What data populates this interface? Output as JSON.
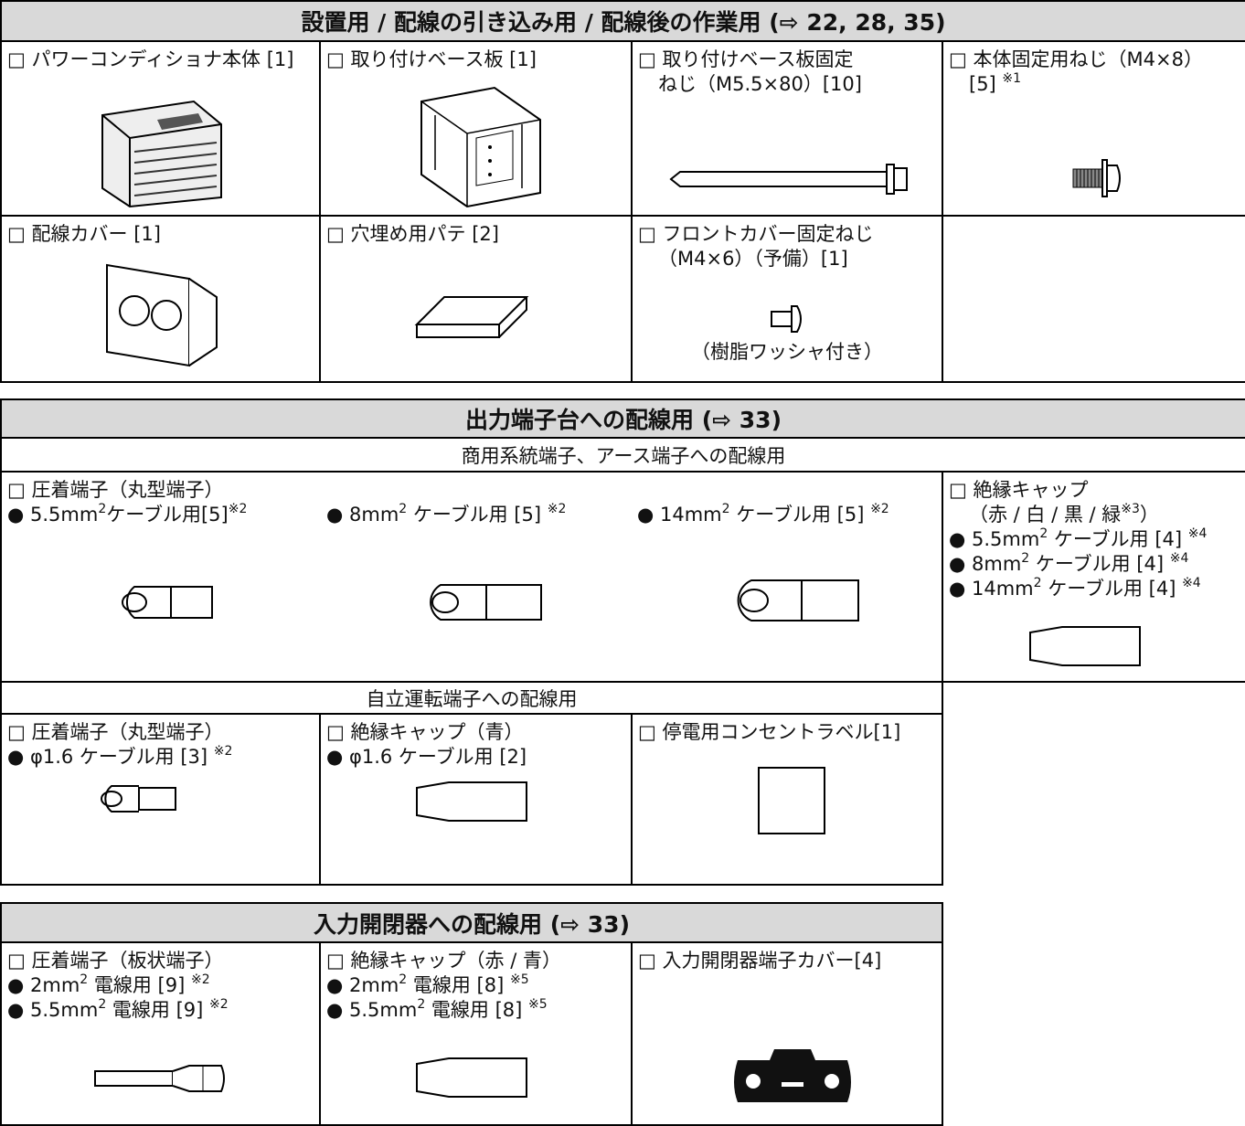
{
  "part1": {
    "header": "設置用 / 配線の引き込み用 / 配線後の作業用 (⇨ 22, 28, 35)",
    "items": [
      {
        "lines": [
          [
            "□ パワーコンディショナ本体 [1]"
          ]
        ]
      },
      {
        "lines": [
          [
            "□ 取り付けベース板 [1]"
          ]
        ]
      },
      {
        "lines": [
          [
            "□ 取り付けベース板固定"
          ],
          [
            "ねじ（M5.5×80）[10]"
          ]
        ]
      },
      {
        "lines": [
          [
            "□ 本体固定用ねじ（M4×8）"
          ],
          [
            "[5] ",
            {
              "sup": "※1"
            }
          ]
        ]
      },
      {
        "lines": [
          [
            "□ 配線カバー [1]"
          ]
        ]
      },
      {
        "lines": [
          [
            "□ 穴埋め用パテ [2]"
          ]
        ]
      },
      {
        "lines": [
          [
            "□ フロントカバー固定ねじ"
          ],
          [
            "（M4×6）（予備）[1]"
          ]
        ],
        "caption": "（樹脂ワッシャ付き）"
      }
    ]
  },
  "part2": {
    "header": "出力端子台への配線用 (⇨ 33)",
    "groups": [
      {
        "title": "商用系統端子、アース端子への配線用",
        "items": [
          {
            "lines": [
              [
                "□ 圧着端子（丸型端子）"
              ]
            ],
            "bullets": [
              [
                "● 5.5mm",
                {
                  "sup": "2"
                },
                "ケーブル用[5]",
                {
                  "sup": "※2"
                }
              ],
              [
                "● 8mm",
                {
                  "sup": "2"
                },
                " ケーブル用 [5] ",
                {
                  "sup": "※2"
                }
              ],
              [
                "● 14mm",
                {
                  "sup": "2"
                },
                " ケーブル用 [5] ",
                {
                  "sup": "※2"
                }
              ]
            ]
          },
          {
            "lines": [
              [
                "□ 絶縁キャップ"
              ],
              [
                "（赤 / 白 / 黒 / 緑",
                {
                  "sup": "※3"
                },
                "）"
              ],
              [
                "● 5.5mm",
                {
                  "sup": "2"
                },
                " ケーブル用 [4] ",
                {
                  "sup": "※4"
                }
              ],
              [
                "● 8mm",
                {
                  "sup": "2"
                },
                " ケーブル用 [4] ",
                {
                  "sup": "※4"
                }
              ],
              [
                "● 14mm",
                {
                  "sup": "2"
                },
                " ケーブル用 [4] ",
                {
                  "sup": "※4"
                }
              ]
            ]
          }
        ]
      },
      {
        "title": "自立運転端子への配線用",
        "items": [
          {
            "lines": [
              [
                "□ 圧着端子（丸型端子）"
              ],
              [
                "● φ1.6 ケーブル用 [3] ",
                {
                  "sup": "※2"
                }
              ]
            ]
          },
          {
            "lines": [
              [
                "□ 絶縁キャップ（青）"
              ],
              [
                "● φ1.6 ケーブル用 [2]"
              ]
            ]
          },
          {
            "lines": [
              [
                "□ 停電用コンセントラベル[1]"
              ]
            ]
          }
        ]
      }
    ]
  },
  "part3": {
    "header": "入力開閉器への配線用 (⇨ 33)",
    "items": [
      {
        "lines": [
          [
            "□ 圧着端子（板状端子）"
          ],
          [
            "● 2mm",
            {
              "sup": "2"
            },
            " 電線用 [9] ",
            {
              "sup": "※2"
            }
          ],
          [
            "● 5.5mm",
            {
              "sup": "2"
            },
            " 電線用 [9] ",
            {
              "sup": "※2"
            }
          ]
        ]
      },
      {
        "lines": [
          [
            "□ 絶縁キャップ（赤 / 青）"
          ],
          [
            "● 2mm",
            {
              "sup": "2"
            },
            " 電線用 [8] ",
            {
              "sup": "※5"
            }
          ],
          [
            "● 5.5mm",
            {
              "sup": "2"
            },
            " 電線用 [8] ",
            {
              "sup": "※5"
            }
          ]
        ]
      },
      {
        "lines": [
          [
            "□ 入力開閉器端子カバー[4]"
          ]
        ]
      }
    ]
  }
}
